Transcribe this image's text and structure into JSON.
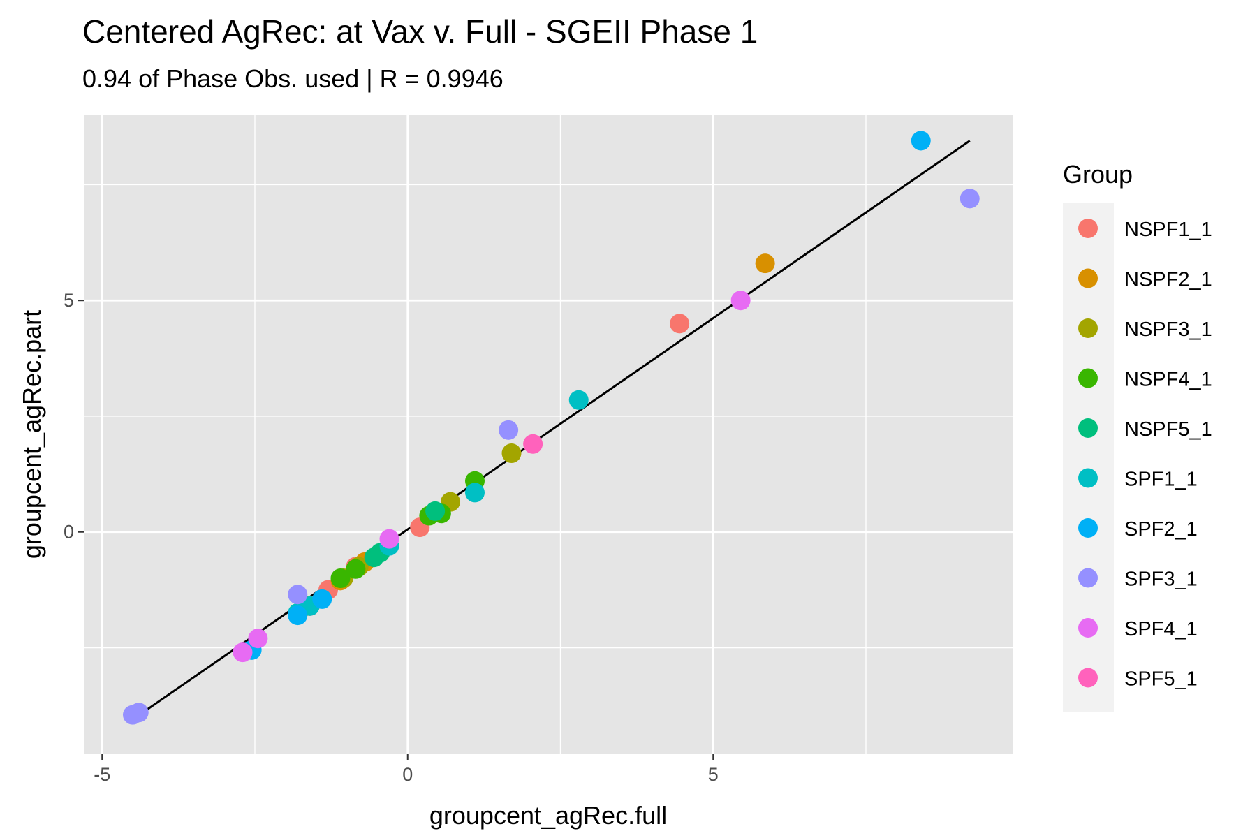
{
  "chart_data": {
    "type": "scatter",
    "title": "Centered AgRec: at Vax v. Full - SGEII Phase 1",
    "subtitle": "0.94 of Phase Obs. used | R = 0.9946",
    "xlabel": "groupcent_agRec.full",
    "ylabel": "groupcent_agRec.part",
    "xlim": [
      -5.3,
      9.9
    ],
    "ylim": [
      -4.8,
      9.0
    ],
    "x_ticks": [
      -5,
      0,
      5
    ],
    "y_ticks": [
      0,
      5
    ],
    "grid": true,
    "background": "#e5e5e5",
    "legend": {
      "title": "Group",
      "position": "right"
    },
    "fit_line": {
      "x": [
        -4.5,
        9.2
      ],
      "y": [
        -4.05,
        8.45
      ],
      "color": "#000000"
    },
    "series": [
      {
        "name": "NSPF1_1",
        "color": "#F8766D",
        "points": [
          [
            4.45,
            4.5
          ],
          [
            0.2,
            0.1
          ],
          [
            -1.3,
            -1.25
          ],
          [
            -0.85,
            -0.75
          ],
          [
            -1.6,
            -1.6
          ]
        ]
      },
      {
        "name": "NSPF2_1",
        "color": "#D89000",
        "points": [
          [
            5.85,
            5.8
          ],
          [
            -0.7,
            -0.65
          ],
          [
            -1.65,
            -1.6
          ],
          [
            -1.1,
            -1.05
          ]
        ]
      },
      {
        "name": "NSPF3_1",
        "color": "#A3A500",
        "points": [
          [
            1.7,
            1.7
          ],
          [
            0.7,
            0.65
          ],
          [
            -1.05,
            -1.0
          ],
          [
            -0.8,
            -0.75
          ]
        ]
      },
      {
        "name": "NSPF4_1",
        "color": "#39B600",
        "points": [
          [
            1.1,
            1.1
          ],
          [
            0.55,
            0.4
          ],
          [
            0.35,
            0.35
          ],
          [
            -0.85,
            -0.8
          ],
          [
            -1.1,
            -1.0
          ]
        ]
      },
      {
        "name": "NSPF5_1",
        "color": "#00BF7D",
        "points": [
          [
            0.45,
            0.45
          ],
          [
            -0.55,
            -0.55
          ],
          [
            -0.45,
            -0.45
          ]
        ]
      },
      {
        "name": "SPF1_1",
        "color": "#00BFC4",
        "points": [
          [
            2.8,
            2.85
          ],
          [
            1.1,
            0.85
          ],
          [
            -0.3,
            -0.3
          ],
          [
            -1.8,
            -1.75
          ],
          [
            -1.6,
            -1.6
          ]
        ]
      },
      {
        "name": "SPF2_1",
        "color": "#00B0F6",
        "points": [
          [
            8.4,
            8.45
          ],
          [
            -2.55,
            -2.55
          ],
          [
            -1.4,
            -1.45
          ],
          [
            -1.8,
            -1.8
          ]
        ]
      },
      {
        "name": "SPF3_1",
        "color": "#9590FF",
        "points": [
          [
            9.2,
            7.2
          ],
          [
            1.65,
            2.2
          ],
          [
            -1.8,
            -1.35
          ],
          [
            -4.5,
            -3.95
          ],
          [
            -4.4,
            -3.9
          ]
        ]
      },
      {
        "name": "SPF4_1",
        "color": "#E76BF3",
        "points": [
          [
            5.45,
            5.0
          ],
          [
            -0.3,
            -0.15
          ],
          [
            -2.45,
            -2.3
          ],
          [
            -2.7,
            -2.6
          ]
        ]
      },
      {
        "name": "SPF5_1",
        "color": "#FF62BC",
        "points": [
          [
            2.05,
            1.9
          ]
        ]
      }
    ]
  }
}
